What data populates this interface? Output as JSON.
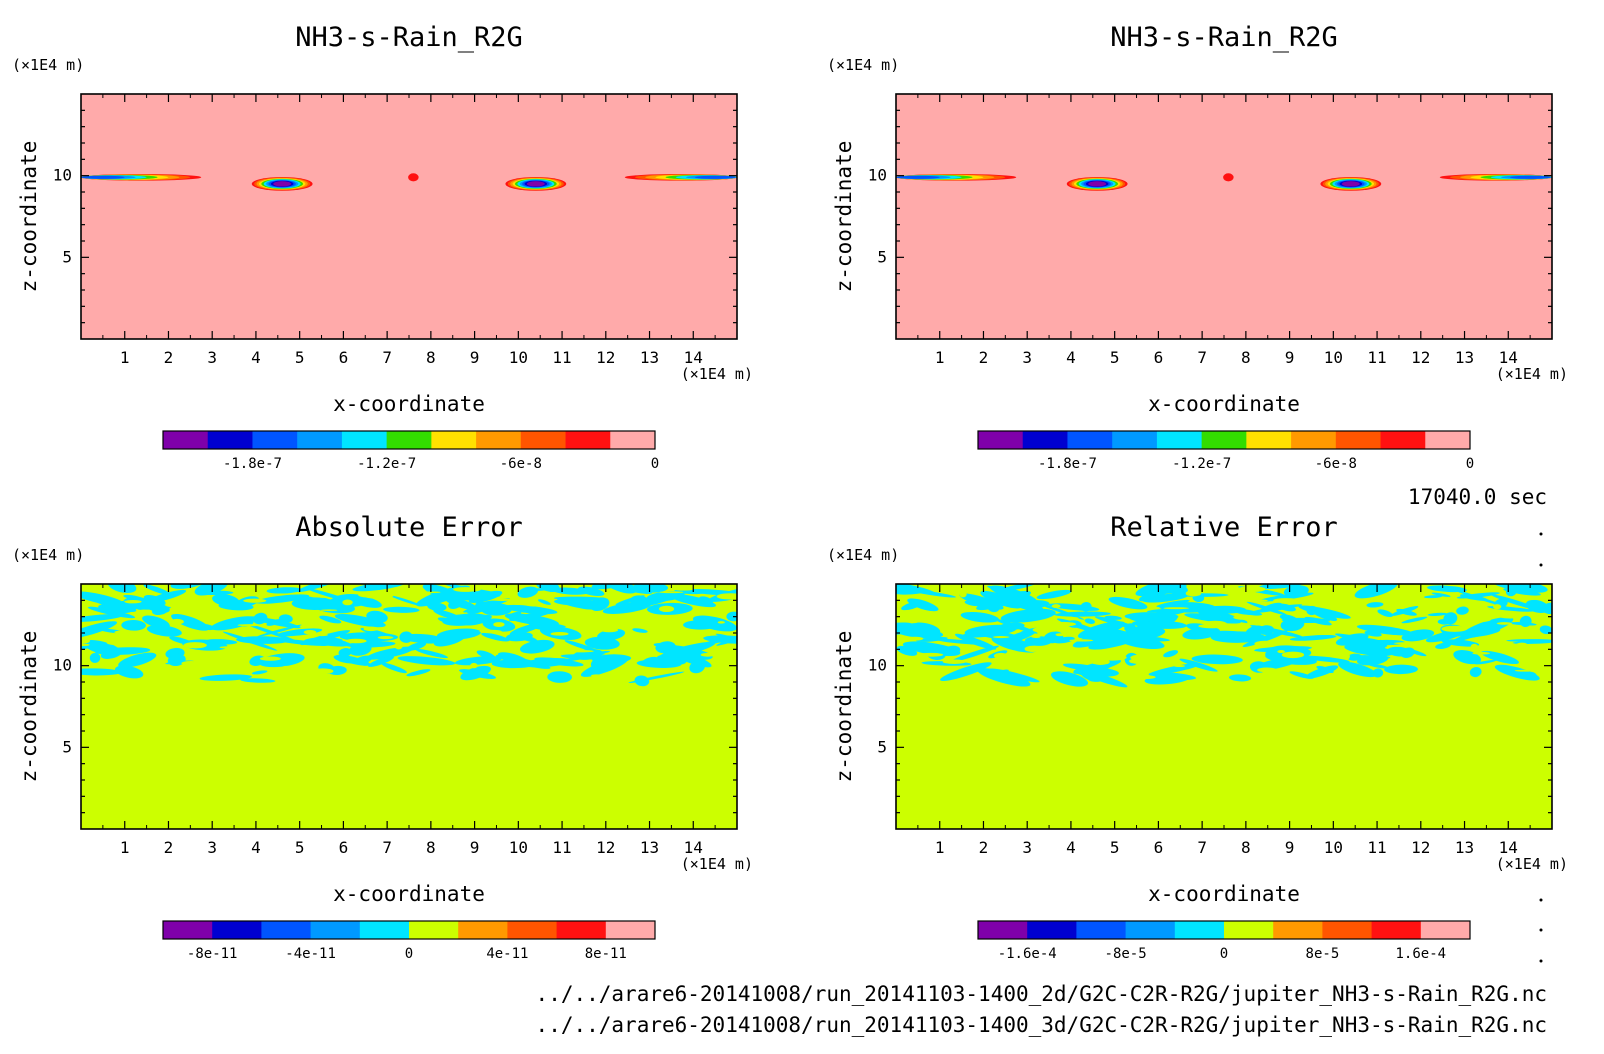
{
  "time_label": "17040.0 sec",
  "file_paths": [
    "../../arare6-20141008/run_20141103-1400_2d/G2C-C2R-R2G/jupiter_NH3-s-Rain_R2G.nc",
    "../../arare6-20141008/run_20141103-1400_3d/G2C-C2R-R2G/jupiter_NH3-s-Rain_R2G.nc"
  ],
  "chart_data": [
    {
      "type": "heatmap",
      "title": "NH3-s-Rain_R2G",
      "xlabel": "x-coordinate",
      "ylabel": "z-coordinate",
      "x_unit": "(×1E4 m)",
      "y_unit": "(×1E4 m)",
      "xlim": [
        0,
        15
      ],
      "ylim": [
        0,
        15
      ],
      "x_ticks": [
        "1",
        "2",
        "3",
        "4",
        "5",
        "6",
        "7",
        "8",
        "9",
        "10",
        "11",
        "12",
        "13",
        "14"
      ],
      "y_ticks": [
        "5",
        "10"
      ],
      "background": "#ffaaaa",
      "colorbar": {
        "colors": [
          "#7f00aa",
          "#0000d0",
          "#0055ff",
          "#0099ff",
          "#00e5ff",
          "#33dd00",
          "#ffe100",
          "#ff9900",
          "#ff5500",
          "#ff1111",
          "#ffaaaa"
        ],
        "ticks": [
          "-1.8e-7",
          "-1.2e-7",
          "-6e-8",
          "0"
        ],
        "tick_values": [
          -1.8e-07,
          -1.2e-07,
          -6e-08,
          0
        ],
        "range": [
          -2.2e-07,
          0
        ]
      },
      "features": [
        {
          "kind": "streak",
          "x0": 0,
          "x1": 3.0,
          "z": 9.9,
          "cx": 0.5,
          "min": -1.8e-07
        },
        {
          "kind": "blob",
          "x": 4.6,
          "z": 9.5,
          "rx": 0.75,
          "rz": 0.45,
          "min": -2.1e-07
        },
        {
          "kind": "dot",
          "x": 7.6,
          "z": 9.9,
          "rx": 0.2,
          "rz": 0.38,
          "min": -4e-08
        },
        {
          "kind": "blob",
          "x": 10.4,
          "z": 9.5,
          "rx": 0.75,
          "rz": 0.45,
          "min": -2.1e-07
        },
        {
          "kind": "streak",
          "x0": 12.2,
          "x1": 15,
          "z": 9.9,
          "cx": 14.5,
          "min": -1.8e-07
        }
      ]
    },
    {
      "type": "heatmap",
      "title": "NH3-s-Rain_R2G",
      "xlabel": "x-coordinate",
      "ylabel": "z-coordinate",
      "x_unit": "(×1E4 m)",
      "y_unit": "(×1E4 m)",
      "xlim": [
        0,
        15
      ],
      "ylim": [
        0,
        15
      ],
      "x_ticks": [
        "1",
        "2",
        "3",
        "4",
        "5",
        "6",
        "7",
        "8",
        "9",
        "10",
        "11",
        "12",
        "13",
        "14"
      ],
      "y_ticks": [
        "5",
        "10"
      ],
      "background": "#ffaaaa",
      "colorbar": {
        "colors": [
          "#7f00aa",
          "#0000d0",
          "#0055ff",
          "#0099ff",
          "#00e5ff",
          "#33dd00",
          "#ffe100",
          "#ff9900",
          "#ff5500",
          "#ff1111",
          "#ffaaaa"
        ],
        "ticks": [
          "-1.8e-7",
          "-1.2e-7",
          "-6e-8",
          "0"
        ],
        "tick_values": [
          -1.8e-07,
          -1.2e-07,
          -6e-08,
          0
        ],
        "range": [
          -2.2e-07,
          0
        ]
      },
      "features": [
        {
          "kind": "streak",
          "x0": 0,
          "x1": 3.0,
          "z": 9.9,
          "cx": 0.5,
          "min": -1.8e-07
        },
        {
          "kind": "blob",
          "x": 4.6,
          "z": 9.5,
          "rx": 0.75,
          "rz": 0.45,
          "min": -2.1e-07
        },
        {
          "kind": "dot",
          "x": 7.6,
          "z": 9.9,
          "rx": 0.2,
          "rz": 0.38,
          "min": -4e-08
        },
        {
          "kind": "blob",
          "x": 10.4,
          "z": 9.5,
          "rx": 0.75,
          "rz": 0.45,
          "min": -2.1e-07
        },
        {
          "kind": "streak",
          "x0": 12.2,
          "x1": 15,
          "z": 9.9,
          "cx": 14.5,
          "min": -1.8e-07
        }
      ]
    },
    {
      "type": "heatmap",
      "title": "Absolute Error",
      "xlabel": "x-coordinate",
      "ylabel": "z-coordinate",
      "x_unit": "(×1E4 m)",
      "y_unit": "(×1E4 m)",
      "xlim": [
        0,
        15
      ],
      "ylim": [
        0,
        15
      ],
      "x_ticks": [
        "1",
        "2",
        "3",
        "4",
        "5",
        "6",
        "7",
        "8",
        "9",
        "10",
        "11",
        "12",
        "13",
        "14"
      ],
      "y_ticks": [
        "5",
        "10"
      ],
      "background": "#ccff00",
      "noise_color": "#00e5ff",
      "noise_zrange": [
        9,
        15
      ],
      "colorbar": {
        "colors": [
          "#7f00aa",
          "#0000d0",
          "#0055ff",
          "#0099ff",
          "#00e5ff",
          "#ccff00",
          "#ff9900",
          "#ff5500",
          "#ff1111",
          "#ffaaaa"
        ],
        "ticks": [
          "-8e-11",
          "-4e-11",
          "0",
          "4e-11",
          "8e-11"
        ],
        "tick_values": [
          -8e-11,
          -4e-11,
          0,
          4e-11,
          8e-11
        ],
        "range": [
          -1e-10,
          1e-10
        ]
      }
    },
    {
      "type": "heatmap",
      "title": "Relative Error",
      "xlabel": "x-coordinate",
      "ylabel": "z-coordinate",
      "x_unit": "(×1E4 m)",
      "y_unit": "(×1E4 m)",
      "xlim": [
        0,
        15
      ],
      "ylim": [
        0,
        15
      ],
      "x_ticks": [
        "1",
        "2",
        "3",
        "4",
        "5",
        "6",
        "7",
        "8",
        "9",
        "10",
        "11",
        "12",
        "13",
        "14"
      ],
      "y_ticks": [
        "5",
        "10"
      ],
      "background": "#ccff00",
      "noise_color": "#00e5ff",
      "noise_zrange": [
        9,
        15
      ],
      "colorbar": {
        "colors": [
          "#7f00aa",
          "#0000d0",
          "#0055ff",
          "#0099ff",
          "#00e5ff",
          "#ccff00",
          "#ff9900",
          "#ff5500",
          "#ff1111",
          "#ffaaaa"
        ],
        "ticks": [
          "-1.6e-4",
          "-8e-5",
          "0",
          "8e-5",
          "1.6e-4"
        ],
        "tick_values": [
          -0.00016,
          -8e-05,
          0,
          8e-05,
          0.00016
        ],
        "range": [
          -0.0002,
          0.0002
        ]
      }
    }
  ]
}
